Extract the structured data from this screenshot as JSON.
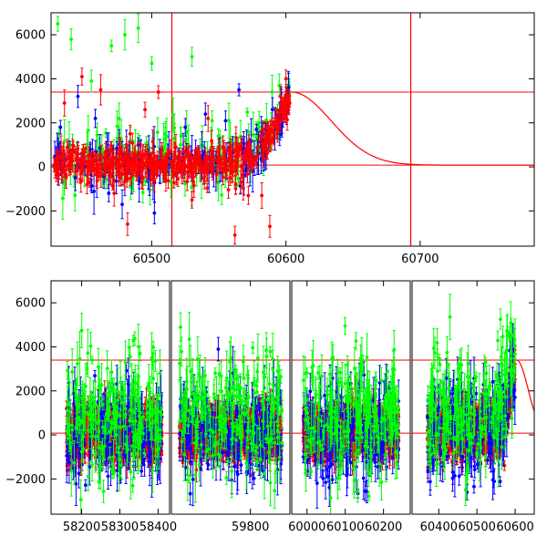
{
  "chart_data": [
    {
      "type": "scatter",
      "title": "",
      "xlabel": "",
      "ylabel": "",
      "xlim": [
        60425,
        60785
      ],
      "ylim": [
        -3600,
        7000
      ],
      "grid": false,
      "x_ticks": [
        60500,
        60600,
        60700
      ],
      "x_tick_labels": [
        "60500",
        "60600",
        "60700"
      ],
      "y_ticks": [
        -2000,
        0,
        2000,
        4000,
        6000
      ],
      "y_tick_labels": [
        "−2000",
        "0",
        "2000",
        "4000",
        "6000"
      ],
      "reference_lines": {
        "horizontal": [
          3400,
          80
        ],
        "vertical": [
          60515,
          60693
        ]
      },
      "model_curve": {
        "peak_x": 60604,
        "peak_y": 3400,
        "baseline": 80,
        "decay_to_x": 60690
      },
      "series": [
        {
          "color": "#00ff00",
          "points": [
            [
              60430,
              6500
            ],
            [
              60440,
              5800
            ],
            [
              60455,
              3900
            ],
            [
              60470,
              5500
            ],
            [
              60480,
              6000
            ],
            [
              60490,
              6300
            ],
            [
              60500,
              4700
            ],
            [
              60510,
              1500
            ],
            [
              60530,
              5000
            ],
            [
              60545,
              2100
            ],
            [
              60560,
              1000
            ],
            [
              60580,
              2000
            ],
            [
              60595,
              3700
            ],
            [
              60600,
              3400
            ]
          ]
        },
        {
          "color": "#0000ff",
          "points": [
            [
              60432,
              1800
            ],
            [
              60445,
              3200
            ],
            [
              60458,
              2200
            ],
            [
              60468,
              -1200
            ],
            [
              60478,
              -1700
            ],
            [
              60490,
              1000
            ],
            [
              60502,
              -2100
            ],
            [
              60512,
              400
            ],
            [
              60525,
              1800
            ],
            [
              60540,
              2400
            ],
            [
              60555,
              2100
            ],
            [
              60565,
              3500
            ],
            [
              60578,
              1700
            ],
            [
              60590,
              2600
            ],
            [
              60602,
              3600
            ]
          ]
        },
        {
          "color": "#ff0000",
          "points": [
            [
              60435,
              2900
            ],
            [
              60448,
              4100
            ],
            [
              60462,
              3500
            ],
            [
              60472,
              -1200
            ],
            [
              60482,
              -2600
            ],
            [
              60495,
              2600
            ],
            [
              60505,
              3400
            ],
            [
              60518,
              900
            ],
            [
              60530,
              -1500
            ],
            [
              60542,
              2200
            ],
            [
              60550,
              300
            ],
            [
              60562,
              -3100
            ],
            [
              60572,
              -1300
            ],
            [
              60582,
              -1300
            ],
            [
              60588,
              -2700
            ],
            [
              60596,
              3200
            ],
            [
              60600,
              4000
            ]
          ]
        }
      ]
    },
    {
      "type": "scatter",
      "title": "",
      "xlabel": "",
      "ylabel": "",
      "xlim": [
        -3600,
        7000
      ],
      "ylim": [
        -3600,
        7000
      ],
      "grid": false,
      "y_ticks": [
        -2000,
        0,
        2000,
        4000,
        6000
      ],
      "y_tick_labels": [
        "−2000",
        "0",
        "2000",
        "4000",
        "6000"
      ],
      "reference_lines": {
        "horizontal": [
          3400,
          80
        ]
      },
      "segments": [
        {
          "xlim": [
            58120,
            58430
          ],
          "x_ticks": [
            58200,
            58300,
            58400
          ],
          "x_tick_labels": [
            "58200",
            "58300",
            "58400"
          ],
          "data_range": [
            58160,
            58410
          ]
        },
        {
          "xlim": [
            59600,
            59900
          ],
          "x_ticks": [
            59800
          ],
          "x_tick_labels": [
            "59800"
          ],
          "data_range": [
            59620,
            59880
          ]
        },
        {
          "xlim": [
            59960,
            60270
          ],
          "x_ticks": [
            60000,
            60100,
            60200
          ],
          "x_tick_labels": [
            "60000",
            "60100",
            "60200"
          ],
          "data_range": [
            59990,
            60240
          ]
        },
        {
          "xlim": [
            60330,
            60650
          ],
          "x_ticks": [
            60400,
            60500,
            60600
          ],
          "x_tick_labels": [
            "60400",
            "60500",
            "60600"
          ],
          "data_range": [
            60370,
            60600
          ]
        }
      ],
      "series": [
        {
          "color": "#00ff00",
          "points": []
        },
        {
          "color": "#0000ff",
          "points": []
        },
        {
          "color": "#ff0000",
          "points": []
        }
      ]
    }
  ]
}
